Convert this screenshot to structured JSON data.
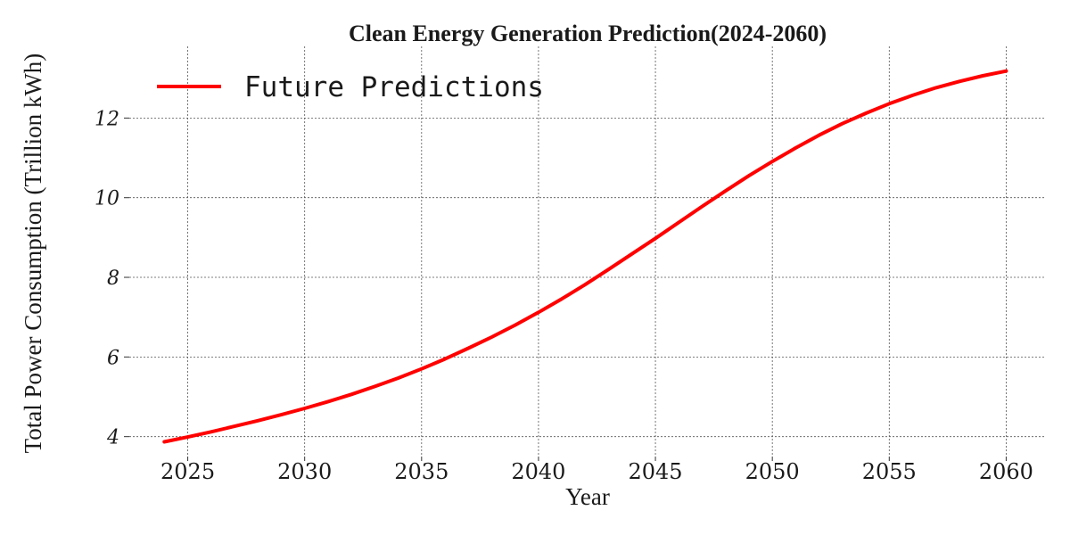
{
  "chart_data": {
    "type": "line",
    "title": "Clean Energy Generation Prediction(2024-2060)",
    "xlabel": "Year",
    "ylabel": "Total Power Consumption (Trillion kWh)",
    "xlim": [
      2022.5,
      2061.7
    ],
    "ylim": [
      3.5,
      13.8
    ],
    "xticks": [
      2025,
      2030,
      2035,
      2040,
      2045,
      2050,
      2055,
      2060
    ],
    "yticks": [
      4,
      6,
      8,
      10,
      12
    ],
    "grid": true,
    "legend_position": "top-left",
    "series": [
      {
        "name": "Future Predictions",
        "color": "#ff0000",
        "x": [
          2024,
          2025,
          2026,
          2027,
          2028,
          2029,
          2030,
          2031,
          2032,
          2033,
          2034,
          2035,
          2036,
          2037,
          2038,
          2039,
          2040,
          2041,
          2042,
          2043,
          2044,
          2045,
          2046,
          2047,
          2048,
          2049,
          2050,
          2051,
          2052,
          2053,
          2054,
          2055,
          2056,
          2057,
          2058,
          2059,
          2060
        ],
        "y": [
          3.87,
          3.99,
          4.12,
          4.26,
          4.4,
          4.55,
          4.71,
          4.88,
          5.06,
          5.26,
          5.47,
          5.7,
          5.95,
          6.22,
          6.5,
          6.8,
          7.12,
          7.46,
          7.82,
          8.2,
          8.59,
          8.98,
          9.38,
          9.78,
          10.17,
          10.55,
          10.91,
          11.25,
          11.57,
          11.86,
          12.12,
          12.36,
          12.57,
          12.76,
          12.92,
          13.06,
          13.18
        ]
      }
    ]
  }
}
